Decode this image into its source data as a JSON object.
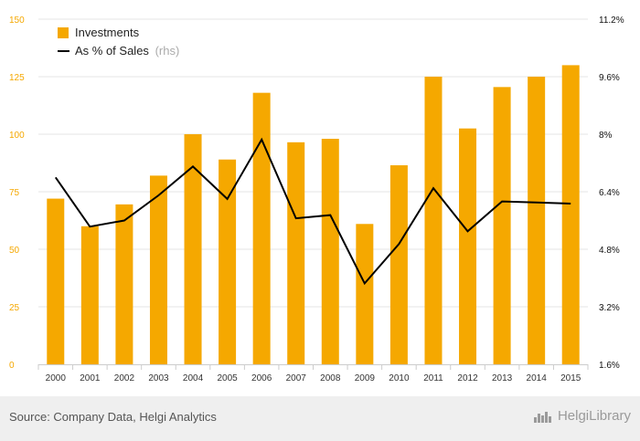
{
  "chart_data": {
    "type": "bar",
    "categories": [
      "2000",
      "2001",
      "2002",
      "2003",
      "2004",
      "2005",
      "2006",
      "2007",
      "2008",
      "2009",
      "2010",
      "2011",
      "2012",
      "2013",
      "2014",
      "2015"
    ],
    "series": [
      {
        "name": "Investments",
        "type": "bar",
        "axis": "left",
        "color": "#f5a800",
        "values": [
          72,
          60,
          69.5,
          82,
          100,
          89,
          118,
          96.5,
          98,
          61,
          86.5,
          125,
          102.5,
          120.5,
          125,
          130
        ]
      },
      {
        "name": "As % of Sales",
        "name_suffix": "(rhs)",
        "type": "line",
        "axis": "right",
        "color": "#000000",
        "values": [
          6.8,
          5.43,
          5.6,
          6.3,
          7.1,
          6.2,
          7.85,
          5.66,
          5.75,
          3.85,
          4.95,
          6.5,
          5.3,
          6.13,
          6.1,
          6.07
        ]
      }
    ],
    "y_left": {
      "ticks": [
        0,
        25,
        50,
        75,
        100,
        125,
        150
      ],
      "ylim": [
        0,
        150
      ]
    },
    "y_right": {
      "ticks": [
        "1.6%",
        "3.2%",
        "4.8%",
        "6.4%",
        "8%",
        "9.6%",
        "11.2%"
      ],
      "ylim": [
        1.6,
        11.2
      ]
    },
    "grid": true,
    "legend": "top-left"
  },
  "footer": {
    "source": "Source: Company Data, Helgi Analytics",
    "logo": "HelgiLibrary"
  }
}
